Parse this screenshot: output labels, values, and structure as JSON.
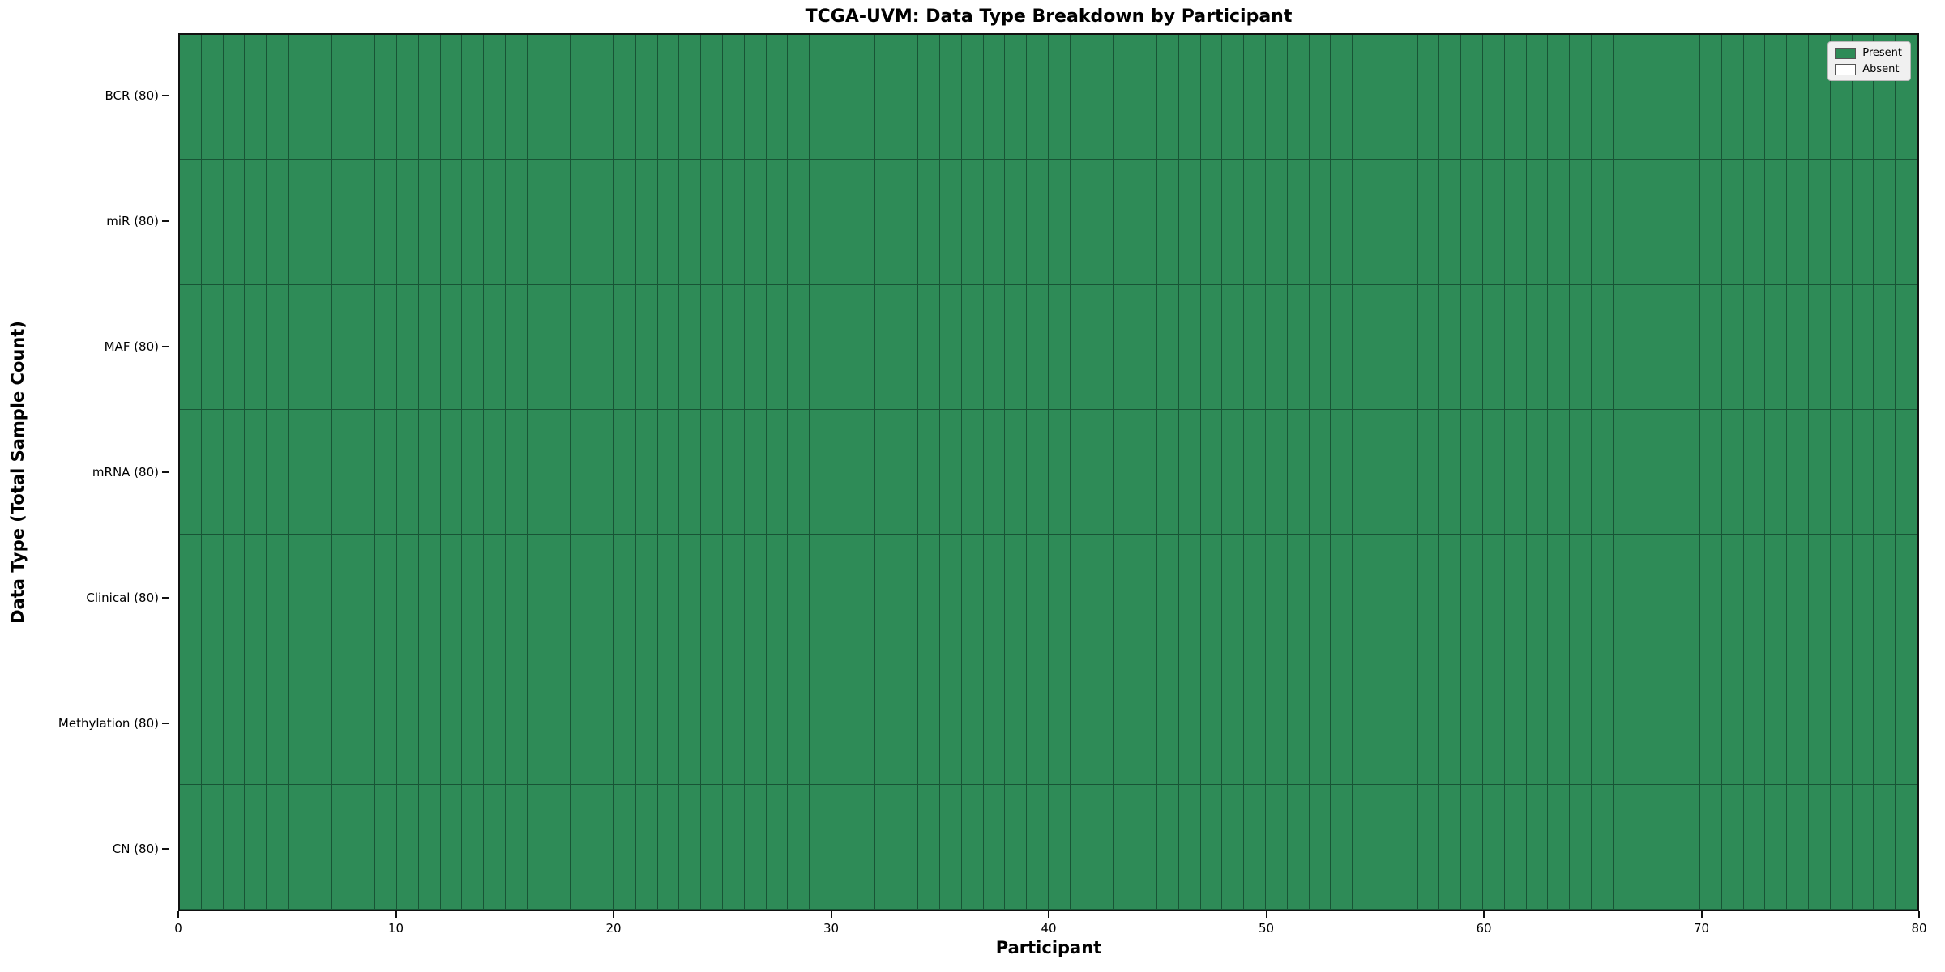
{
  "figure": {
    "title": "TCGA-UVM: Data Type Breakdown by Participant",
    "xlabel": "Participant",
    "ylabel": "Data Type (Total Sample Count)"
  },
  "legend": {
    "items": [
      {
        "label": "Present",
        "color": "#2e8b57"
      },
      {
        "label": "Absent",
        "color": "#ffffff"
      }
    ]
  },
  "chart_data": {
    "type": "heatmap",
    "title": "TCGA-UVM: Data Type Breakdown by Participant",
    "xlabel": "Participant",
    "ylabel": "Data Type (Total Sample Count)",
    "rows": [
      "BCR (80)",
      "miR (80)",
      "MAF (80)",
      "mRNA (80)",
      "Clinical (80)",
      "Methylation (80)",
      "CN (80)"
    ],
    "row_present_counts": [
      80,
      80,
      80,
      80,
      80,
      80,
      80
    ],
    "n_participants": 80,
    "x_range": [
      0,
      80
    ],
    "x_ticks": [
      0,
      10,
      20,
      30,
      40,
      50,
      60,
      70,
      80
    ],
    "cell_values": "all cells present (value = 1) for every row and every participant",
    "colors": {
      "present": "#2e8b57",
      "absent": "#ffffff",
      "gridline": "rgba(10, 48, 30, 0.6)"
    },
    "legend_entries": [
      "Present",
      "Absent"
    ],
    "legend_position": "upper right",
    "grid": true
  }
}
